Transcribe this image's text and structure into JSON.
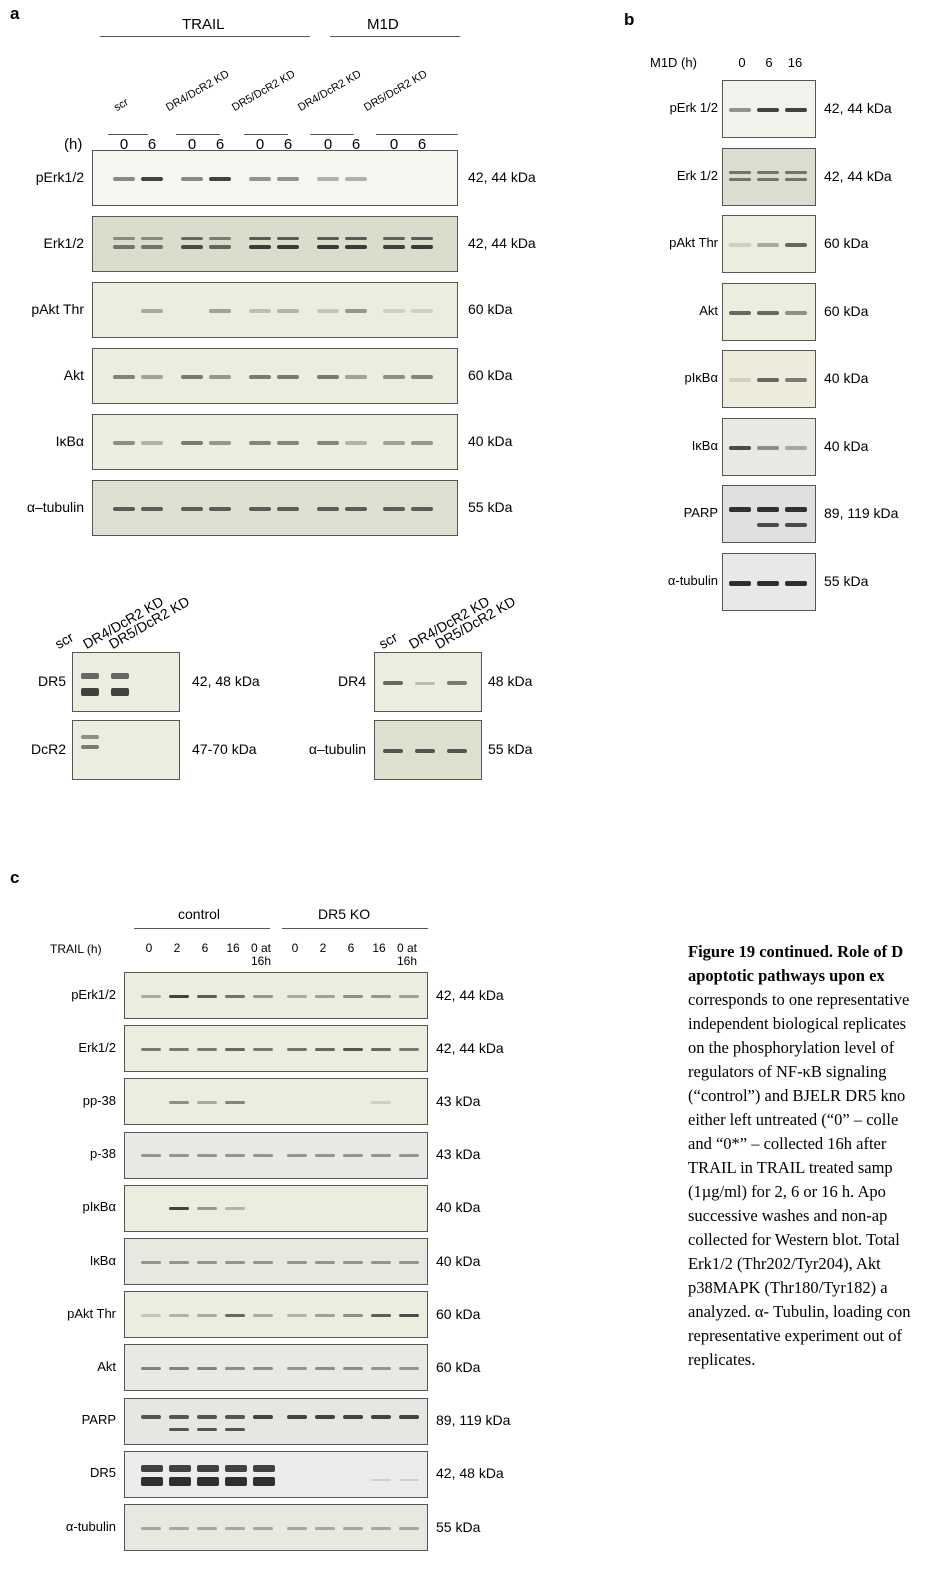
{
  "panels": {
    "a": {
      "label": "a",
      "group_labels": [
        "TRAIL",
        "M1D"
      ],
      "lane_conditions": [
        "scr",
        "DR4/DcR2 KD",
        "DR5/DcR2 KD",
        "DR4/DcR2 KD",
        "DR5/DcR2 KD"
      ],
      "time_header": "(h)",
      "times": [
        "0",
        "6",
        "0",
        "6",
        "0",
        "6",
        "0",
        "6",
        "0",
        "6"
      ],
      "rows": [
        {
          "name": "pErk1/2",
          "kda": "42, 44 kDa"
        },
        {
          "name": "Erk1/2",
          "kda": "42, 44 kDa"
        },
        {
          "name": "pAkt Thr",
          "kda": "60 kDa"
        },
        {
          "name": "Akt",
          "kda": "60 kDa"
        },
        {
          "name": "IκBα",
          "kda": "40 kDa"
        },
        {
          "name": "α–tubulin",
          "kda": "55 kDa"
        }
      ],
      "sub_left": {
        "conditions": [
          "scr",
          "DR4/DcR2 KD",
          "DR5/DcR2 KD"
        ],
        "rows": [
          {
            "name": "DR5",
            "kda": "42, 48 kDa"
          },
          {
            "name": "DcR2",
            "kda": "47-70 kDa"
          }
        ]
      },
      "sub_right": {
        "conditions": [
          "scr",
          "DR4/DcR2 KD",
          "DR5/DcR2 KD"
        ],
        "rows": [
          {
            "name": "DR4",
            "kda": "48 kDa"
          },
          {
            "name": "α–tubulin",
            "kda": "55 kDa"
          }
        ]
      }
    },
    "b": {
      "label": "b",
      "time_header": "M1D (h)",
      "times": [
        "0",
        "6",
        "16"
      ],
      "rows": [
        {
          "name": "pErk 1/2",
          "kda": "42, 44 kDa"
        },
        {
          "name": "Erk 1/2",
          "kda": "42, 44 kDa"
        },
        {
          "name": "pAkt Thr",
          "kda": "60 kDa"
        },
        {
          "name": "Akt",
          "kda": "60 kDa"
        },
        {
          "name": "pIκBα",
          "kda": "40 kDa"
        },
        {
          "name": "IκBα",
          "kda": "40 kDa"
        },
        {
          "name": "PARP",
          "kda": "89, 119 kDa"
        },
        {
          "name": "α-tubulin",
          "kda": "55 kDa"
        }
      ]
    },
    "c": {
      "label": "c",
      "group_labels": [
        "control",
        "DR5 KO"
      ],
      "time_header": "TRAIL (h)",
      "times": [
        "0",
        "2",
        "6",
        "16",
        "0 at 16h",
        "0",
        "2",
        "6",
        "16",
        "0 at 16h"
      ],
      "rows": [
        {
          "name": "pErk1/2",
          "kda": "42, 44 kDa"
        },
        {
          "name": "Erk1/2",
          "kda": "42, 44 kDa"
        },
        {
          "name": "pp-38",
          "kda": "43 kDa"
        },
        {
          "name": "p-38",
          "kda": "43 kDa"
        },
        {
          "name": "pIκBα",
          "kda": "40 kDa"
        },
        {
          "name": "IκBα",
          "kda": "40 kDa"
        },
        {
          "name": "pAkt Thr",
          "kda": "60 kDa"
        },
        {
          "name": "Akt",
          "kda": "60 kDa"
        },
        {
          "name": "PARP",
          "kda": "89, 119 kDa"
        },
        {
          "name": "DR5",
          "kda": "42, 48 kDa"
        },
        {
          "name": "α-tubulin",
          "kda": "55 kDa"
        }
      ]
    }
  },
  "caption": {
    "title": "Figure 19 continued. Role of D",
    "title2": "apoptotic pathways upon ex",
    "lines": [
      "corresponds to one representative",
      "independent biological replicates",
      "on the phosphorylation level of",
      "regulators of NF-κB signaling",
      "(“control”) and BJELR DR5 kno",
      "either left untreated (“0” – colle",
      "and “0*” – collected 16h after",
      "TRAIL in TRAIL treated samp",
      "(1µg/ml) for 2, 6 or 16 h. Apo",
      "successive washes and non-ap",
      "collected for Western blot. Total",
      "Erk1/2 (Thr202/Tyr204), Akt",
      "p38MAPK (Thr180/Tyr182) a",
      "analyzed. α- Tubulin, loading con",
      "representative experiment out of",
      "replicates."
    ]
  }
}
